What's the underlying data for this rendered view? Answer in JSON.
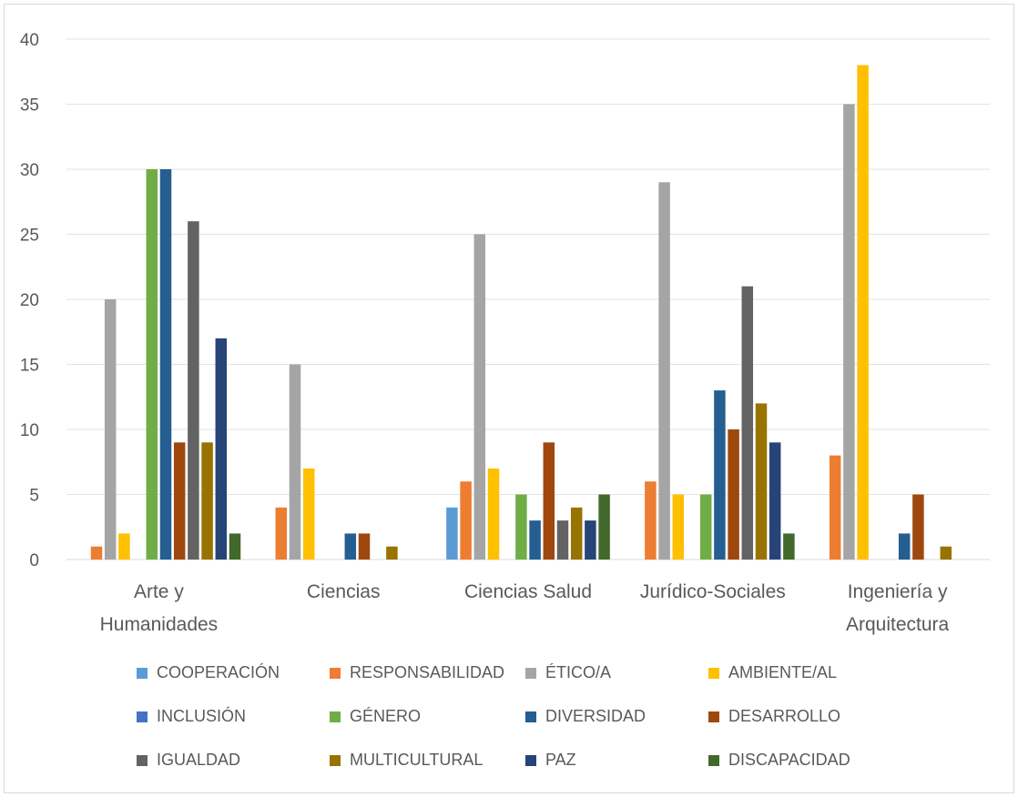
{
  "chart_data": {
    "type": "bar",
    "ylim": [
      0,
      40
    ],
    "yticks": [
      0,
      5,
      10,
      15,
      20,
      25,
      30,
      35,
      40
    ],
    "grid": true,
    "legend_position": "bottom",
    "categories": [
      [
        "Arte y",
        "Humanidades"
      ],
      [
        "Ciencias"
      ],
      [
        "Ciencias Salud"
      ],
      [
        "Jurídico-Sociales"
      ],
      [
        "Ingeniería y",
        "Arquitectura"
      ]
    ],
    "series": [
      {
        "name": "COOPERACIÓN",
        "color": "#5b9bd5",
        "values": [
          0,
          0,
          4,
          0,
          0
        ]
      },
      {
        "name": "RESPONSABILIDAD",
        "color": "#ed7d31",
        "values": [
          1,
          4,
          6,
          6,
          8
        ]
      },
      {
        "name": "ÉTICO/A",
        "color": "#a5a5a5",
        "values": [
          20,
          15,
          25,
          29,
          35
        ]
      },
      {
        "name": "AMBIENTE/AL",
        "color": "#ffc000",
        "values": [
          2,
          7,
          7,
          5,
          38
        ]
      },
      {
        "name": "INCLUSIÓN",
        "color": "#4472c4",
        "values": [
          0,
          0,
          0,
          0,
          0
        ]
      },
      {
        "name": "GÉNERO",
        "color": "#70ad47",
        "values": [
          30,
          0,
          5,
          5,
          0
        ]
      },
      {
        "name": "DIVERSIDAD",
        "color": "#255e91",
        "values": [
          30,
          2,
          3,
          13,
          2
        ]
      },
      {
        "name": "DESARROLLO",
        "color": "#9e480e",
        "values": [
          9,
          2,
          9,
          10,
          5
        ]
      },
      {
        "name": "IGUALDAD",
        "color": "#636363",
        "values": [
          26,
          0,
          3,
          21,
          0
        ]
      },
      {
        "name": "MULTICULTURAL",
        "color": "#997300",
        "values": [
          9,
          1,
          4,
          12,
          1
        ]
      },
      {
        "name": "PAZ",
        "color": "#264478",
        "values": [
          17,
          0,
          3,
          9,
          0
        ]
      },
      {
        "name": "DISCAPACIDAD",
        "color": "#43682b",
        "values": [
          2,
          0,
          5,
          2,
          0
        ]
      }
    ]
  }
}
